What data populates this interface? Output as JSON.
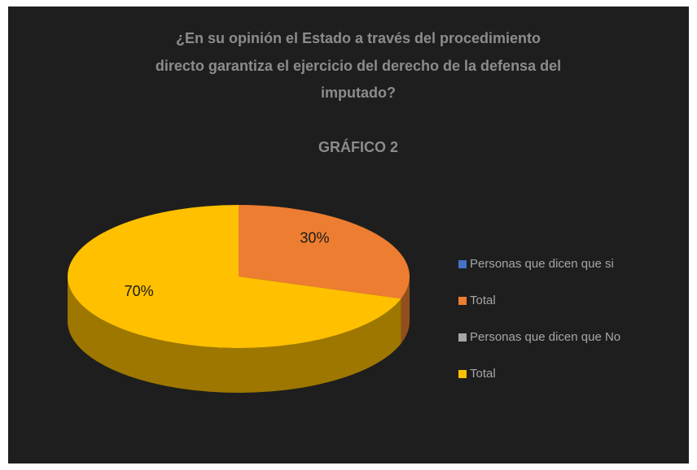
{
  "chart_data": {
    "type": "pie3d",
    "title": [
      "¿En su opinión el Estado a través del procedimiento",
      "directo  garantiza el ejercicio del derecho de la  defensa del",
      "imputado?"
    ],
    "subtitle": "GRÁFICO 2",
    "categories": [
      "Personas que dicen que si",
      "Total",
      "Personas que dicen que No",
      "Total"
    ],
    "values": [
      0,
      30,
      0,
      70
    ],
    "value_labels": [
      null,
      "30%",
      null,
      "70%"
    ],
    "colors": [
      "#4472c4",
      "#ed7d31",
      "#a5a5a5",
      "#ffc000"
    ],
    "legend": "right"
  }
}
